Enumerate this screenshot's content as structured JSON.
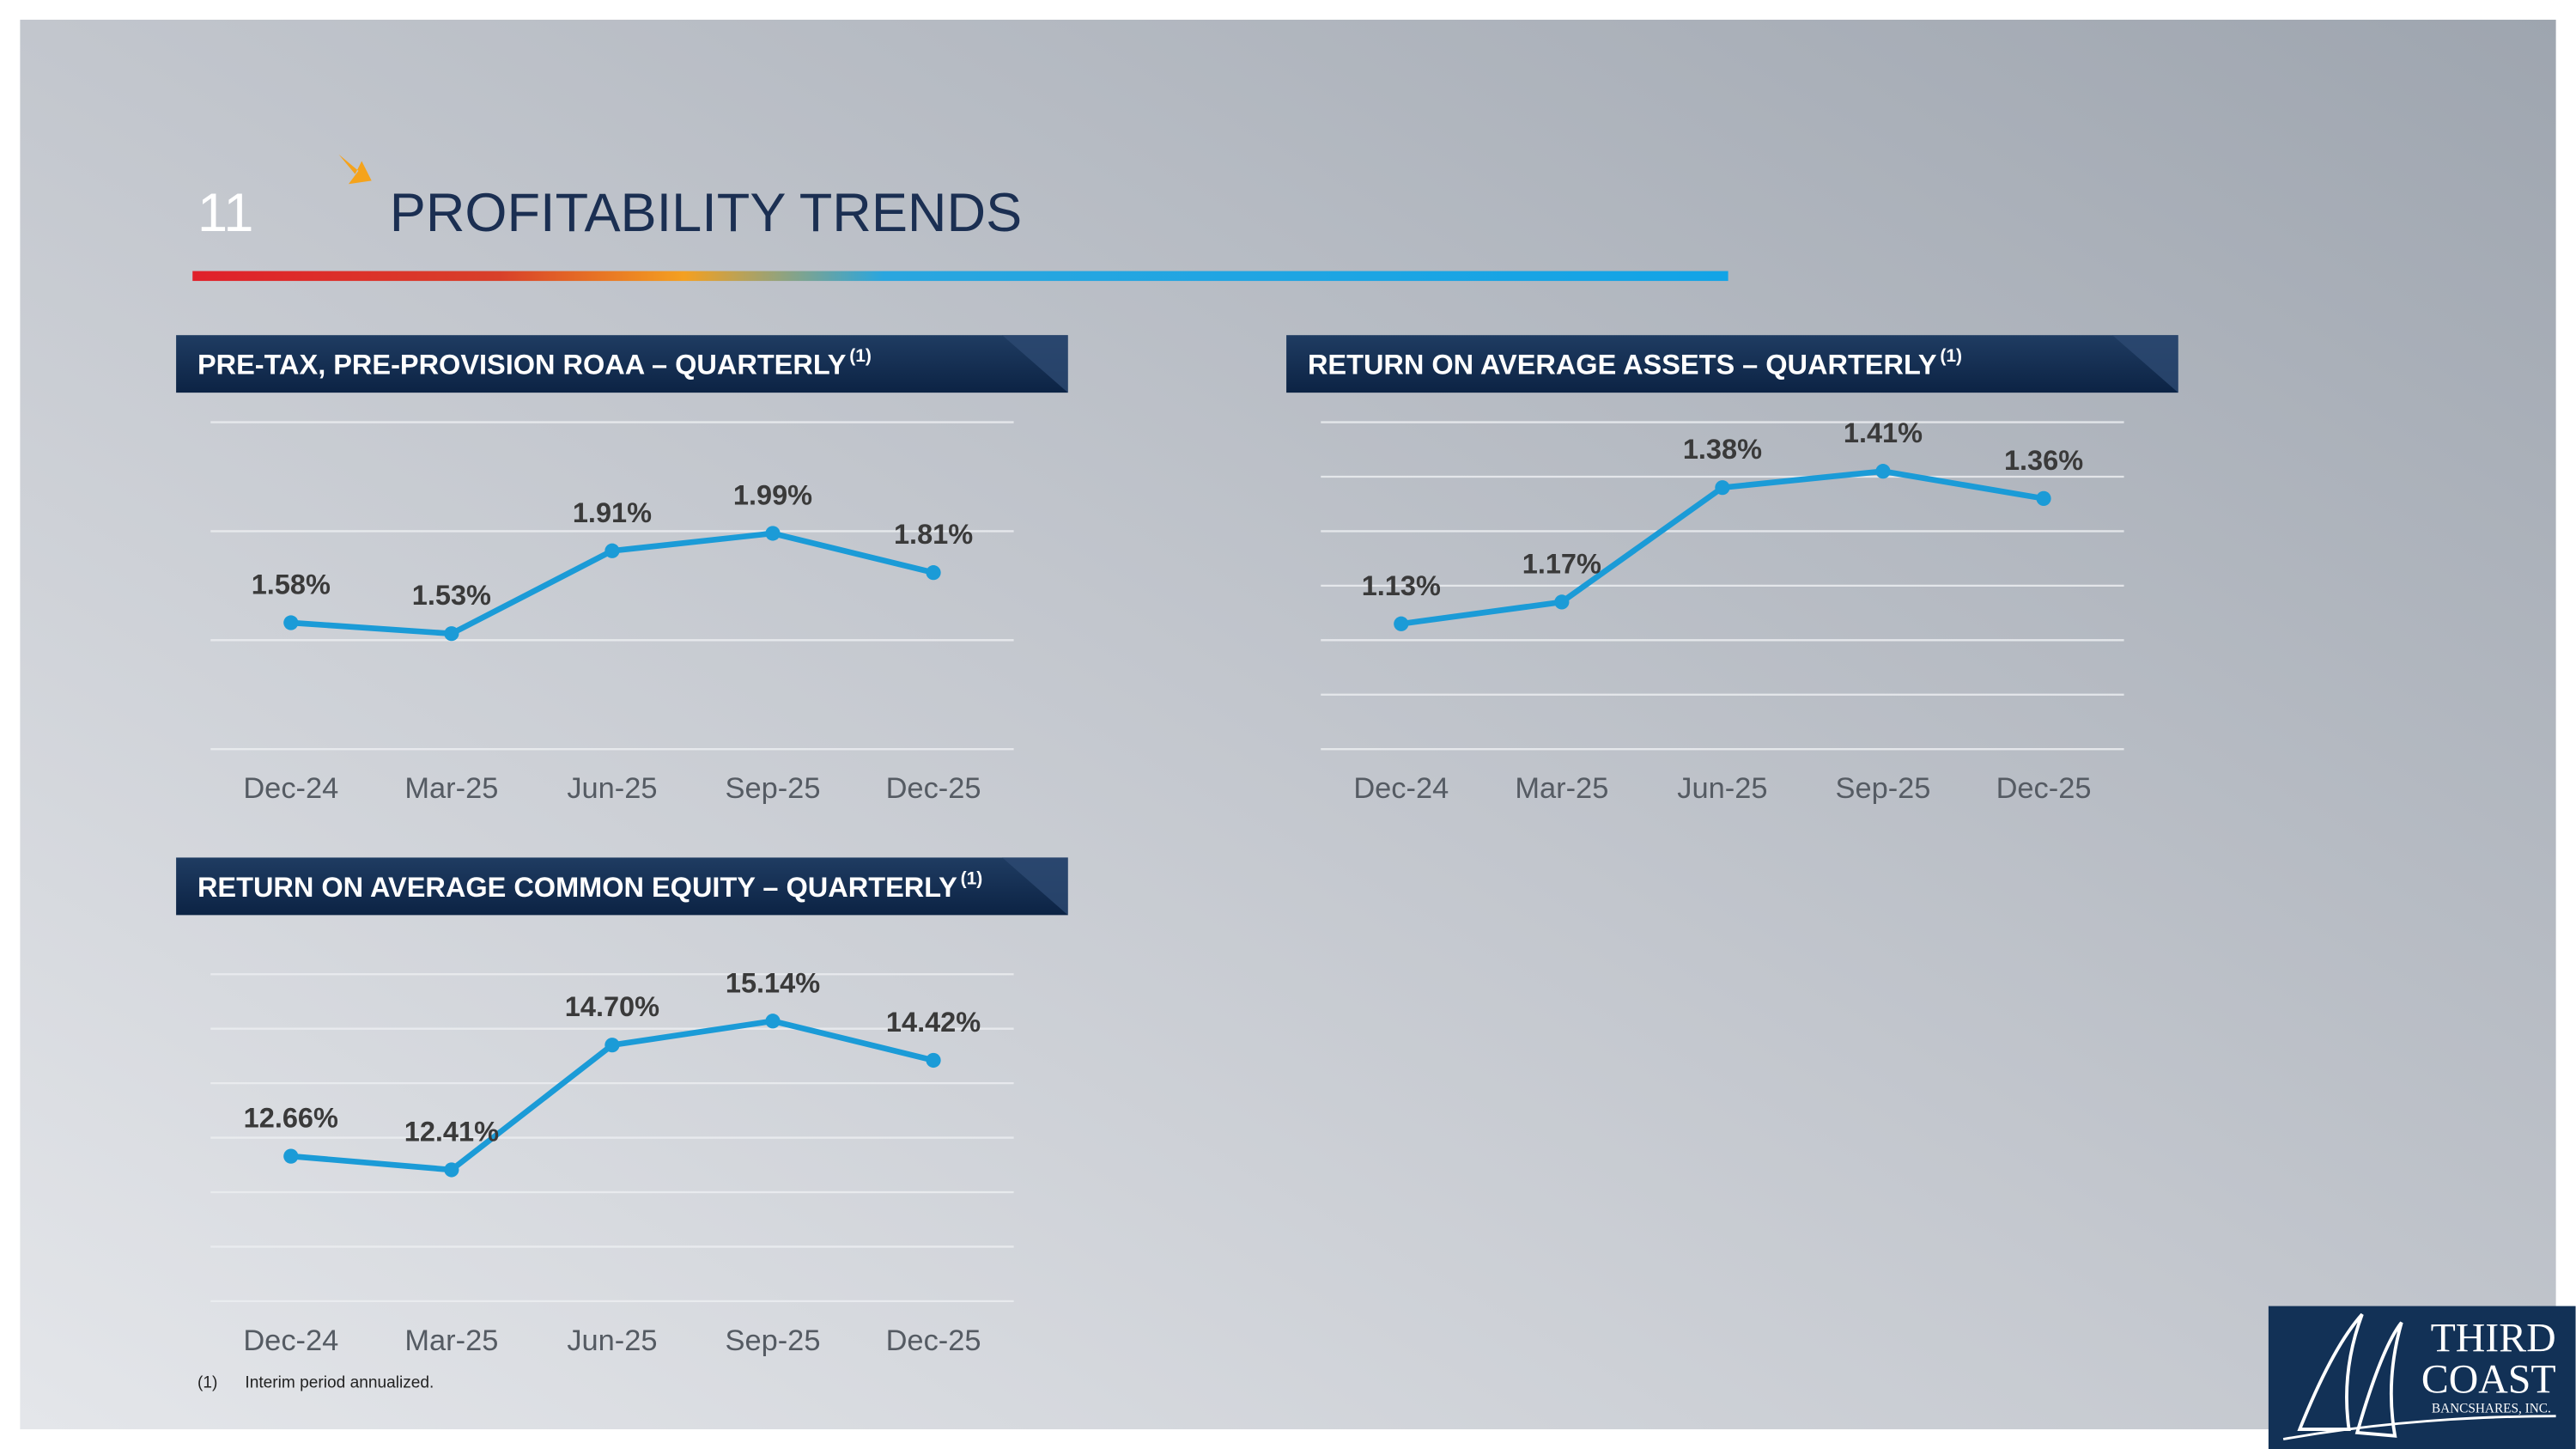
{
  "slide": {
    "number": "11",
    "title": "PROFITABILITY TRENDS"
  },
  "chart_data": [
    {
      "type": "line",
      "title": "PRE-TAX, PRE-PROVISION ROAA – QUARTERLY",
      "title_note": "(1)",
      "categories": [
        "Dec-24",
        "Mar-25",
        "Jun-25",
        "Sep-25",
        "Dec-25"
      ],
      "values": [
        1.58,
        1.53,
        1.91,
        1.99,
        1.81
      ],
      "value_labels": [
        "1.58%",
        "1.53%",
        "1.91%",
        "1.99%",
        "1.81%"
      ],
      "color": "#1b9bd7",
      "ylim": [
        1.0,
        2.5
      ],
      "yticks": [
        1.0,
        1.5,
        2.0,
        2.5
      ],
      "grid": true
    },
    {
      "type": "line",
      "title": "RETURN ON AVERAGE ASSETS – QUARTERLY",
      "title_note": "(1)",
      "categories": [
        "Dec-24",
        "Mar-25",
        "Jun-25",
        "Sep-25",
        "Dec-25"
      ],
      "values": [
        1.13,
        1.17,
        1.38,
        1.41,
        1.36
      ],
      "value_labels": [
        "1.13%",
        "1.17%",
        "1.38%",
        "1.41%",
        "1.36%"
      ],
      "color": "#1b9bd7",
      "ylim": [
        0.9,
        1.5
      ],
      "yticks": [
        0.9,
        1.0,
        1.1,
        1.2,
        1.3,
        1.4,
        1.5
      ],
      "grid": true
    },
    {
      "type": "line",
      "title": "RETURN ON AVERAGE COMMON EQUITY – QUARTERLY",
      "title_note": "(1)",
      "categories": [
        "Dec-24",
        "Mar-25",
        "Jun-25",
        "Sep-25",
        "Dec-25"
      ],
      "values": [
        12.66,
        12.41,
        14.7,
        15.14,
        14.42
      ],
      "value_labels": [
        "12.66%",
        "12.41%",
        "14.70%",
        "15.14%",
        "14.42%"
      ],
      "color": "#1b9bd7",
      "ylim": [
        10,
        16
      ],
      "yticks": [
        10,
        11,
        12,
        13,
        14,
        15,
        16
      ],
      "grid": true
    }
  ],
  "footnote": {
    "marker": "(1)",
    "text": "Interim period annualized."
  },
  "logo": {
    "line1": "THIRD",
    "line2": "COAST",
    "line3": "BANCSHARES, INC."
  }
}
